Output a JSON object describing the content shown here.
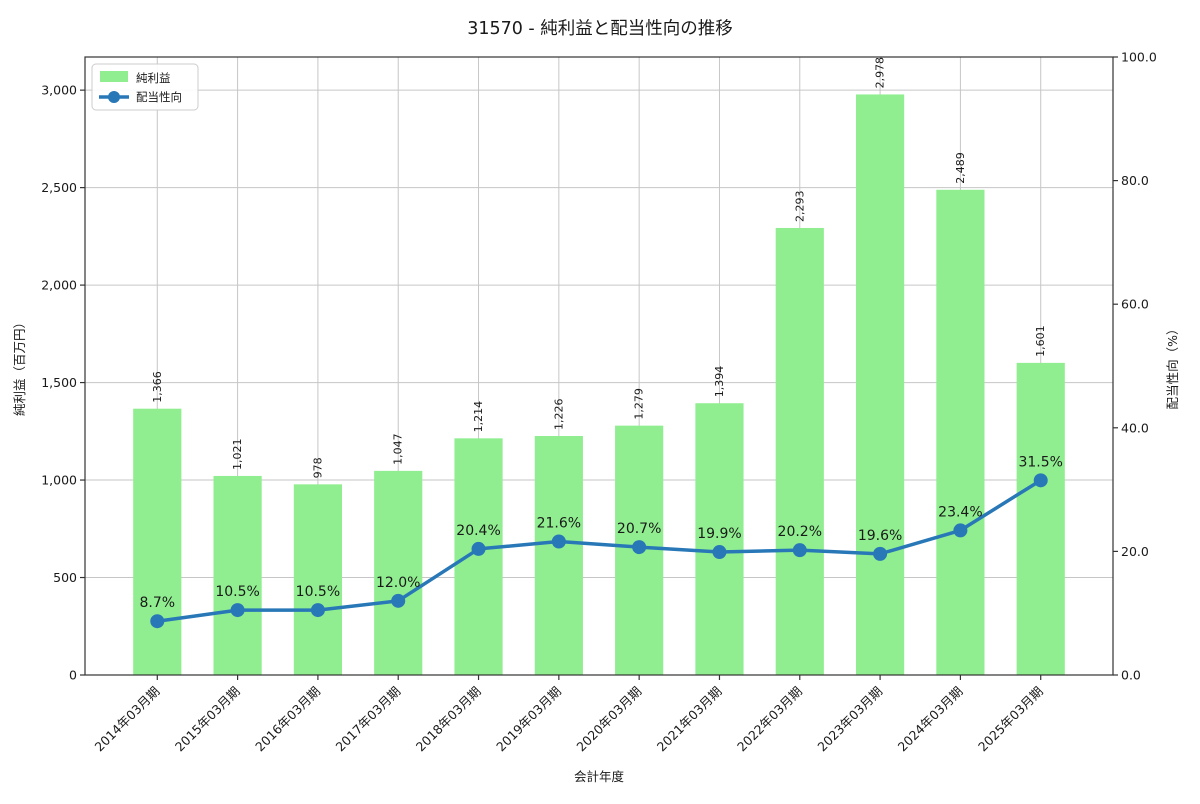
{
  "title": "31570 - 純利益と配当性向の推移",
  "chart_data": {
    "type": "combo",
    "categories": [
      "2014年03月期",
      "2015年03月期",
      "2016年03月期",
      "2017年03月期",
      "2018年03月期",
      "2019年03月期",
      "2020年03月期",
      "2021年03月期",
      "2022年03月期",
      "2023年03月期",
      "2024年03月期",
      "2025年03月期"
    ],
    "series": [
      {
        "name": "純利益",
        "type": "bar",
        "axis": "left",
        "color": "#90ee90",
        "values": [
          1366,
          1021,
          978,
          1047,
          1214,
          1226,
          1279,
          1394,
          2293,
          2978,
          2489,
          1601
        ],
        "value_labels": [
          "1,366",
          "1,021",
          "978",
          "1,047",
          "1,214",
          "1,226",
          "1,279",
          "1,394",
          "2,293",
          "2,978",
          "2,489",
          "1,601"
        ]
      },
      {
        "name": "配当性向",
        "type": "line",
        "axis": "right",
        "color": "#2878b8",
        "label_color": "#3ba1da",
        "values": [
          8.7,
          10.5,
          10.5,
          12.0,
          20.4,
          21.6,
          20.7,
          19.9,
          20.2,
          19.6,
          23.4,
          31.5
        ],
        "value_labels": [
          "8.7%",
          "10.5%",
          "10.5%",
          "12.0%",
          "20.4%",
          "21.6%",
          "20.7%",
          "19.9%",
          "20.2%",
          "19.6%",
          "23.4%",
          "31.5%"
        ]
      }
    ],
    "xlabel": "会計年度",
    "ylabel_left": "純利益（百万円）",
    "ylabel_right": "配当性向（%）",
    "ylim_left": [
      0,
      3170
    ],
    "ylim_right": [
      0,
      100
    ],
    "yticks_left": {
      "values": [
        0,
        500,
        1000,
        1500,
        2000,
        2500,
        3000
      ],
      "labels": [
        "0",
        "500",
        "1,000",
        "1,500",
        "2,000",
        "2,500",
        "3,000"
      ]
    },
    "yticks_right": {
      "values": [
        0,
        20,
        40,
        60,
        80,
        100
      ],
      "labels": [
        "0.0",
        "20.0",
        "40.0",
        "60.0",
        "80.0",
        "100.0"
      ]
    },
    "grid": true,
    "legend_position": "upper-left",
    "legend": [
      "純利益",
      "配当性向"
    ],
    "colors": {
      "grid": "#c6c6c6",
      "spine": "#333333",
      "text": "#1a1a1a",
      "legend_border": "#cccccc"
    }
  }
}
